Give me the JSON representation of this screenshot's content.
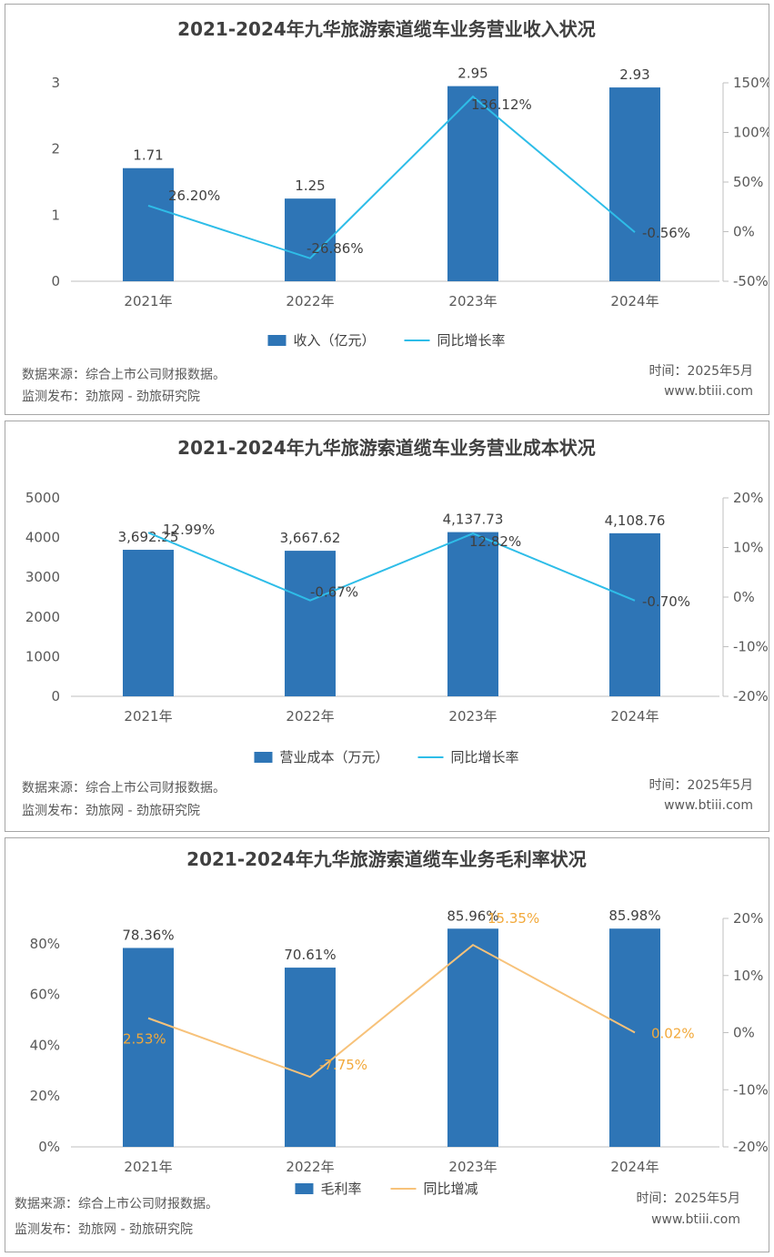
{
  "footer": {
    "source": "数据来源：综合上市公司财报数据。",
    "publisher": "监测发布：劲旅网 - 劲旅研究院",
    "time": "时间：2025年5月",
    "site": "www.btiii.com"
  },
  "colors": {
    "bar": "#2e75b6",
    "line_blue": "#2ebde8",
    "line_orange": "#f7c27a",
    "orange_label": "#f2a93b"
  },
  "chart_data": [
    {
      "type": "bar",
      "title": "2021-2024年九华旅游索道缆车业务营业收入状况",
      "categories": [
        "2021年",
        "2022年",
        "2023年",
        "2024年"
      ],
      "series": [
        {
          "name": "收入（亿元）",
          "type": "bar",
          "axis": "left",
          "values": [
            1.71,
            1.25,
            2.95,
            2.93
          ],
          "labels": [
            "1.71",
            "1.25",
            "2.95",
            "2.93"
          ]
        },
        {
          "name": "同比增长率",
          "type": "line",
          "axis": "right",
          "values": [
            26.2,
            -26.86,
            136.12,
            -0.56
          ],
          "labels": [
            "26.20%",
            "-26.86%",
            "136.12%",
            "-0.56%"
          ]
        }
      ],
      "left_axis": {
        "ylim": [
          0,
          3
        ],
        "ticks": [
          "0",
          "1",
          "2",
          "3"
        ]
      },
      "right_axis": {
        "ylim": [
          -50,
          150
        ],
        "ticks": [
          "-50%",
          "0%",
          "50%",
          "100%",
          "150%"
        ]
      },
      "legend": "bottom"
    },
    {
      "type": "bar",
      "title": "2021-2024年九华旅游索道缆车业务营业成本状况",
      "categories": [
        "2021年",
        "2022年",
        "2023年",
        "2024年"
      ],
      "series": [
        {
          "name": "营业成本（万元）",
          "type": "bar",
          "axis": "left",
          "values": [
            3692.25,
            3667.62,
            4137.73,
            4108.76
          ],
          "labels": [
            "3,692.25",
            "3,667.62",
            "4,137.73",
            "4,108.76"
          ]
        },
        {
          "name": "同比增长率",
          "type": "line",
          "axis": "right",
          "values": [
            12.99,
            -0.67,
            12.82,
            -0.7
          ],
          "labels": [
            "12.99%",
            "-0.67%",
            "12.82%",
            "-0.70%"
          ]
        }
      ],
      "left_axis": {
        "ylim": [
          0,
          5000
        ],
        "ticks": [
          "0",
          "1000",
          "2000",
          "3000",
          "4000",
          "5000"
        ]
      },
      "right_axis": {
        "ylim": [
          -20,
          20
        ],
        "ticks": [
          "-20%",
          "-10%",
          "0%",
          "10%",
          "20%"
        ]
      },
      "legend": "bottom"
    },
    {
      "type": "bar",
      "title": "2021-2024年九华旅游索道缆车业务毛利率状况",
      "categories": [
        "2021年",
        "2022年",
        "2023年",
        "2024年"
      ],
      "series": [
        {
          "name": "毛利率",
          "type": "bar",
          "axis": "left",
          "values": [
            78.36,
            70.61,
            85.96,
            85.98
          ],
          "labels": [
            "78.36%",
            "70.61%",
            "85.96%",
            "85.98%"
          ]
        },
        {
          "name": "同比增减",
          "type": "line",
          "axis": "right",
          "values": [
            2.53,
            -7.75,
            15.35,
            0.02
          ],
          "labels": [
            "2.53%",
            "-7.75%",
            "15.35%",
            "0.02%"
          ]
        }
      ],
      "left_axis": {
        "ylim": [
          0,
          90
        ],
        "ticks": [
          "0%",
          "20%",
          "40%",
          "60%",
          "80%"
        ]
      },
      "right_axis": {
        "ylim": [
          -20,
          20
        ],
        "ticks": [
          "-20%",
          "-10%",
          "0%",
          "10%",
          "20%"
        ]
      },
      "legend": "bottom"
    }
  ]
}
